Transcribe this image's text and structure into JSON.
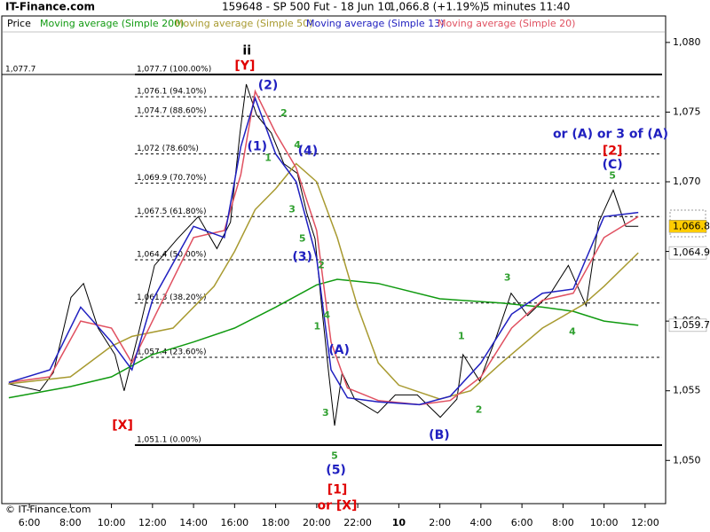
{
  "chart_data": {
    "type": "line",
    "site": "IT-Finance.com",
    "title": "159648 - SP 500 Fut - 18 Jun 10",
    "quote": "1,066.8 (+1.19%)",
    "interval": "5 minutes 11:40",
    "footer": "© IT-Finance.com",
    "xlim": [
      4.57,
      37.0
    ],
    "ylim": [
      1046.9,
      1081.9
    ],
    "xticks": [
      {
        "value": 6,
        "label": "6:00"
      },
      {
        "value": 8,
        "label": "8:00"
      },
      {
        "value": 10,
        "label": "10:00"
      },
      {
        "value": 12,
        "label": "12:00"
      },
      {
        "value": 14,
        "label": "14:00"
      },
      {
        "value": 16,
        "label": "16:00"
      },
      {
        "value": 18,
        "label": "18:00"
      },
      {
        "value": 20,
        "label": "20:00"
      },
      {
        "value": 22,
        "label": "22:00"
      },
      {
        "value": 24,
        "label": "10",
        "bold": true
      },
      {
        "value": 26,
        "label": "2:00"
      },
      {
        "value": 28,
        "label": "4:00"
      },
      {
        "value": 30,
        "label": "6:00"
      },
      {
        "value": 32,
        "label": "8:00"
      },
      {
        "value": 34,
        "label": "10:00"
      },
      {
        "value": 36,
        "label": "12:00"
      }
    ],
    "yticks": [
      {
        "value": 1050,
        "label": "1,050"
      },
      {
        "value": 1055,
        "label": "1,055"
      },
      {
        "value": 1060,
        "label": "1,060"
      },
      {
        "value": 1065,
        "label": "1,065"
      },
      {
        "value": 1070,
        "label": "1,070"
      },
      {
        "value": 1075,
        "label": "1,075"
      },
      {
        "value": 1080,
        "label": "1,080"
      }
    ],
    "series": [
      {
        "name": "Price",
        "color": "#000000",
        "x": [
          4.98,
          6.51,
          7.17,
          8.03,
          8.64,
          9.35,
          10.17,
          10.62,
          11.28,
          12.1,
          13.21,
          14.23,
          15.14,
          15.8,
          16.26,
          16.57,
          17.07,
          17.79,
          18.4,
          19.06,
          19.51,
          19.92,
          20.22,
          20.58,
          20.87,
          21.24,
          21.85,
          22.97,
          23.83,
          24.9,
          26.02,
          26.83,
          27.13,
          27.94,
          28.76,
          29.47,
          30.28,
          31.4,
          32.26,
          33.13,
          33.74,
          34.45,
          35.06,
          35.67
        ],
        "values": [
          1055.5,
          1055.0,
          1056.3,
          1061.7,
          1062.7,
          1059.5,
          1057.6,
          1055.0,
          1058.9,
          1064.0,
          1065.9,
          1067.5,
          1065.2,
          1067.1,
          1073.5,
          1077.0,
          1074.8,
          1073.5,
          1071.3,
          1070.6,
          1067.8,
          1065.9,
          1061.4,
          1056.3,
          1052.5,
          1056.3,
          1054.4,
          1053.4,
          1054.7,
          1054.7,
          1053.1,
          1054.4,
          1057.6,
          1055.7,
          1058.9,
          1062.0,
          1060.4,
          1062.0,
          1064.0,
          1061.1,
          1067.1,
          1069.4,
          1066.8,
          1066.8
        ]
      },
      {
        "name": "Moving average (Simple 200)",
        "color": "#109a10",
        "x": [
          5,
          8,
          10,
          12,
          14,
          16,
          18,
          20,
          21,
          23,
          26,
          29,
          31,
          32.5,
          34,
          35.67
        ],
        "values": [
          1054.5,
          1055.3,
          1056.0,
          1057.6,
          1058.5,
          1059.5,
          1061.0,
          1062.6,
          1063.0,
          1062.7,
          1061.6,
          1061.3,
          1061.0,
          1060.7,
          1060.0,
          1059.7
        ]
      },
      {
        "name": "Moving average (Simple 50)",
        "color": "#a89a30",
        "x": [
          5,
          8,
          10,
          11,
          13,
          15,
          16,
          17,
          18,
          19,
          20,
          21,
          22,
          23,
          24,
          26,
          27.5,
          29,
          31,
          33,
          34,
          35.67
        ],
        "values": [
          1055.5,
          1056.0,
          1058.2,
          1058.9,
          1059.5,
          1062.5,
          1065.0,
          1068.0,
          1069.5,
          1071.3,
          1070.0,
          1066.0,
          1061.0,
          1057.0,
          1055.4,
          1054.4,
          1055.0,
          1057.0,
          1059.5,
          1061.2,
          1062.5,
          1064.9
        ]
      },
      {
        "name": "Moving average (Simple 13)",
        "color": "#2020c0",
        "x": [
          5,
          7,
          8.5,
          10,
          11,
          12,
          14,
          15.5,
          16.3,
          17,
          18,
          19,
          20,
          20.7,
          21.5,
          23,
          25,
          26.5,
          28,
          29.5,
          31,
          32.5,
          34,
          35.67
        ],
        "values": [
          1055.6,
          1056.5,
          1061.0,
          1058.5,
          1056.5,
          1061.5,
          1066.8,
          1066.0,
          1072.5,
          1076.0,
          1072.0,
          1070.0,
          1064.5,
          1056.5,
          1054.5,
          1054.2,
          1054.0,
          1054.6,
          1057.0,
          1060.5,
          1062.0,
          1062.3,
          1067.5,
          1067.8
        ]
      },
      {
        "name": "Moving average (Simple 20)",
        "color": "#e05060",
        "x": [
          5,
          7,
          8.5,
          10,
          11,
          12,
          14,
          15.5,
          16.3,
          17,
          18,
          19,
          20,
          20.7,
          21.5,
          23,
          25,
          26.5,
          28,
          29.5,
          31,
          32.5,
          34,
          35.67
        ],
        "values": [
          1055.6,
          1056.0,
          1060.0,
          1059.5,
          1057.0,
          1060.0,
          1066.0,
          1066.5,
          1070.5,
          1076.5,
          1073.5,
          1071.0,
          1066.5,
          1058.5,
          1055.2,
          1054.3,
          1054.0,
          1054.3,
          1056.0,
          1059.5,
          1061.5,
          1062.0,
          1066.0,
          1067.5
        ]
      }
    ],
    "left_level": {
      "value": 1077.7,
      "label": "1,077.7"
    },
    "levels": [
      {
        "value": 1077.7,
        "label": "1,077.7 (100.00%)",
        "bold": true
      },
      {
        "value": 1076.1,
        "label": "1,076.1 (94.10%)"
      },
      {
        "value": 1074.7,
        "label": "1,074.7 (88.60%)"
      },
      {
        "value": 1072,
        "label": "1,072 (78.60%)"
      },
      {
        "value": 1069.9,
        "label": "1,069.9 (70.70%)"
      },
      {
        "value": 1067.5,
        "label": "1,067.5 (61.80%)"
      },
      {
        "value": 1064.4,
        "label": "1,064.4 (50.00%)"
      },
      {
        "value": 1061.3,
        "label": "1,061.3 (38.20%)"
      },
      {
        "value": 1057.4,
        "label": "1,057.4 (23.60%)"
      },
      {
        "value": 1051.1,
        "label": "1,051.1 (0.00%)",
        "bold": true
      }
    ],
    "last_labels": [
      {
        "value": 1066.8,
        "label": "1,066.8",
        "color": "#ffcc00"
      },
      {
        "value": 1064.9,
        "label": "1,064.9",
        "color": "#ffffff"
      },
      {
        "value": 1059.7,
        "label": "1,059.7",
        "color": "#ffffff"
      }
    ],
    "annotations": [
      {
        "text": "ii",
        "x": 16.6,
        "y": 1079.4,
        "color": "#000000"
      },
      {
        "text": "[Y]",
        "x": 16.5,
        "y": 1078.3,
        "color": "#e00000"
      },
      {
        "text": "(2)",
        "x": 17.63,
        "y": 1076.9,
        "color": "#2020c0"
      },
      {
        "text": "(1)",
        "x": 17.1,
        "y": 1072.5,
        "color": "#2020c0"
      },
      {
        "text": "1",
        "x": 17.63,
        "y": 1071.7,
        "color": "#30a030"
      },
      {
        "text": "2",
        "x": 18.4,
        "y": 1074.9,
        "color": "#30a030"
      },
      {
        "text": "4",
        "x": 19.06,
        "y": 1072.6,
        "color": "#30a030"
      },
      {
        "text": "(4)",
        "x": 19.57,
        "y": 1072.2,
        "color": "#2020c0"
      },
      {
        "text": "3",
        "x": 18.8,
        "y": 1068.0,
        "color": "#30a030"
      },
      {
        "text": "5",
        "x": 19.3,
        "y": 1065.9,
        "color": "#30a030"
      },
      {
        "text": "(3)",
        "x": 19.3,
        "y": 1064.6,
        "color": "#2020c0"
      },
      {
        "text": "2",
        "x": 20.22,
        "y": 1064.0,
        "color": "#30a030"
      },
      {
        "text": "4",
        "x": 20.49,
        "y": 1060.4,
        "color": "#30a030"
      },
      {
        "text": "1",
        "x": 20.02,
        "y": 1059.6,
        "color": "#30a030"
      },
      {
        "text": "(A)",
        "x": 21.09,
        "y": 1057.9,
        "color": "#2020c0"
      },
      {
        "text": "3",
        "x": 20.43,
        "y": 1053.4,
        "color": "#30a030"
      },
      {
        "text": "5",
        "x": 20.87,
        "y": 1050.3,
        "color": "#30a030"
      },
      {
        "text": "(5)",
        "x": 20.94,
        "y": 1049.3,
        "color": "#2020c0"
      },
      {
        "text": "[1]",
        "x": 21.0,
        "y": 1047.9,
        "color": "#e00000"
      },
      {
        "text": "or [X]",
        "x": 21.0,
        "y": 1046.75,
        "color": "#e00000"
      },
      {
        "text": "[X]",
        "x": 10.54,
        "y": 1052.5,
        "color": "#e00000"
      },
      {
        "text": "(B)",
        "x": 25.97,
        "y": 1051.8,
        "color": "#2020c0"
      },
      {
        "text": "1",
        "x": 27.05,
        "y": 1058.9,
        "color": "#30a030"
      },
      {
        "text": "2",
        "x": 27.9,
        "y": 1053.6,
        "color": "#30a030"
      },
      {
        "text": "3",
        "x": 29.29,
        "y": 1063.1,
        "color": "#30a030"
      },
      {
        "text": "4",
        "x": 32.46,
        "y": 1059.2,
        "color": "#30a030"
      },
      {
        "text": "[2]",
        "x": 34.41,
        "y": 1072.2,
        "color": "#e00000"
      },
      {
        "text": "(C)",
        "x": 34.41,
        "y": 1071.2,
        "color": "#2020c0"
      },
      {
        "text": "5",
        "x": 34.41,
        "y": 1070.4,
        "color": "#30a030"
      },
      {
        "text": "or (A) or 3 of (A)",
        "x": 34.32,
        "y": 1073.4,
        "color": "#2020c0"
      }
    ]
  }
}
